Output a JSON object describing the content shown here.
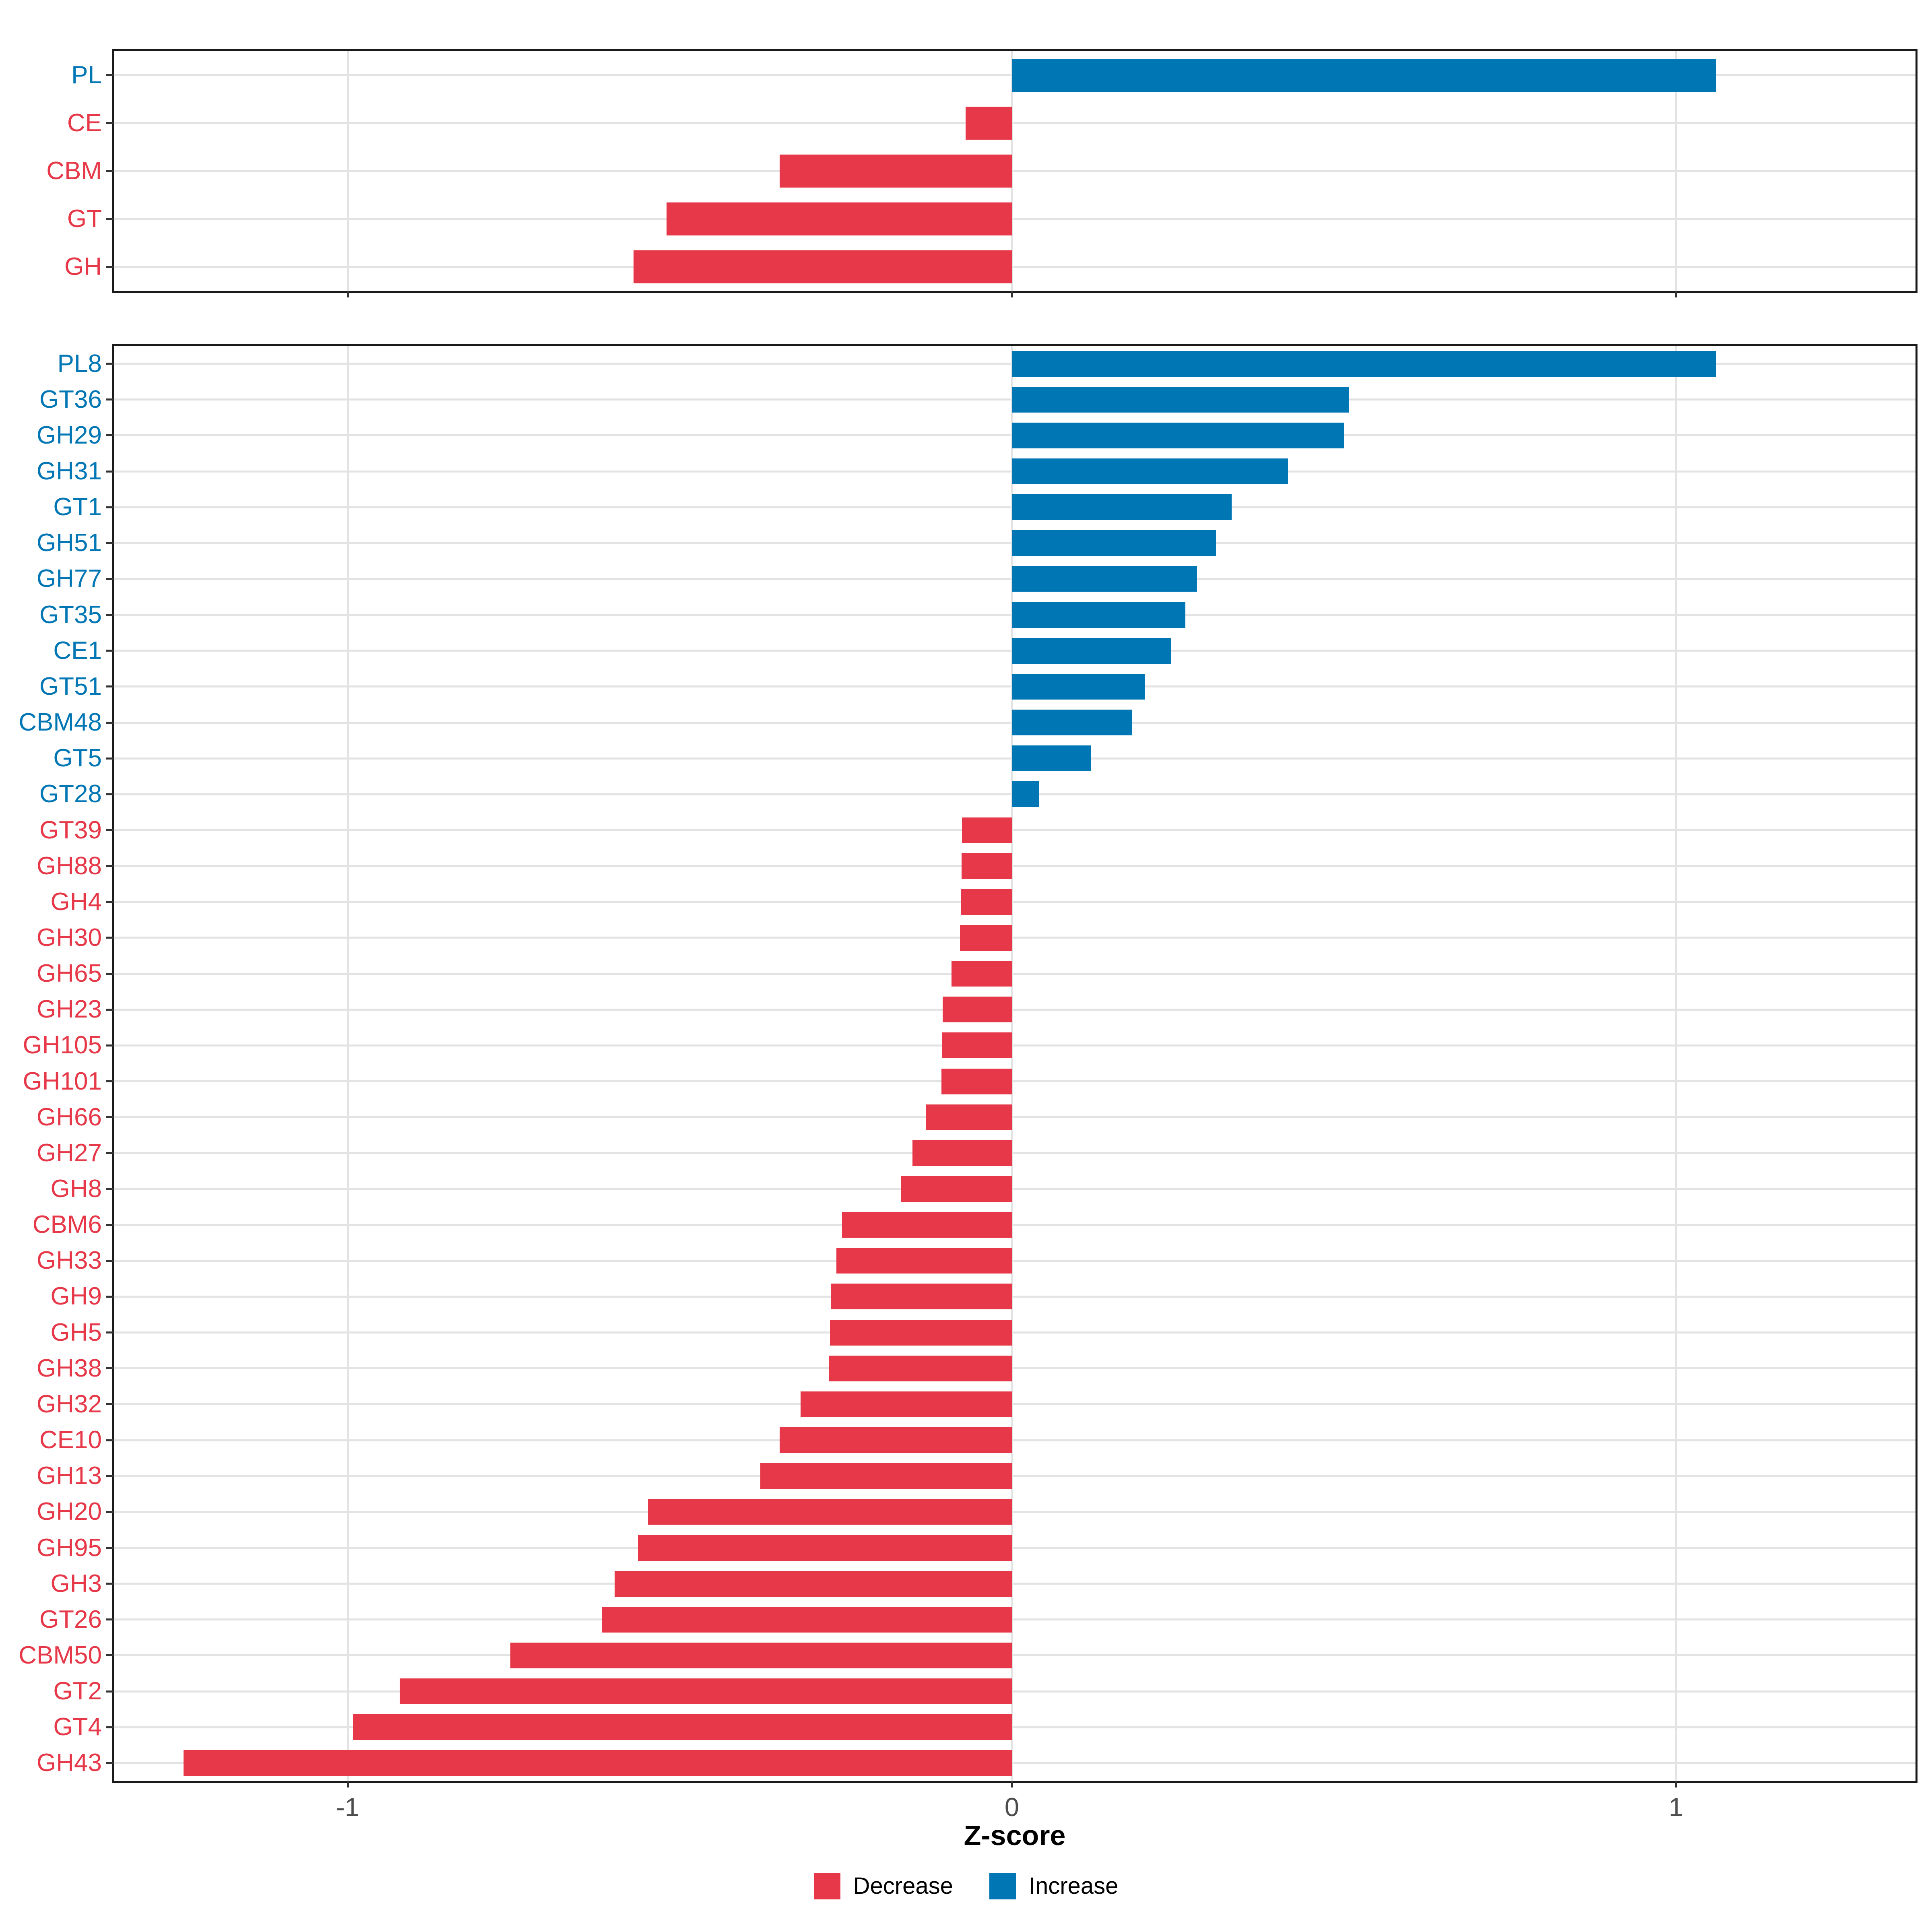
{
  "chart_data": {
    "type": "bar",
    "orientation": "horizontal",
    "title": "",
    "xlabel": "Z-score",
    "ylabel": "",
    "grid": true,
    "x_axis": {
      "ticks": [
        -1,
        0,
        1
      ],
      "tick_labels": [
        "-1",
        "0",
        "1"
      ],
      "range": [
        -1.355,
        1.363
      ]
    },
    "colors": {
      "decrease": "#E63848",
      "increase": "#0076B4"
    },
    "legend": {
      "position": "bottom",
      "items": [
        {
          "key": "decrease",
          "label": "Decrease"
        },
        {
          "key": "increase",
          "label": "Increase"
        }
      ]
    },
    "panels": [
      {
        "name": "cazyme-class-summary",
        "rows": [
          {
            "label": "PL",
            "value": 1.06,
            "direction": "increase"
          },
          {
            "label": "CE",
            "value": -0.07,
            "direction": "decrease"
          },
          {
            "label": "CBM",
            "value": -0.35,
            "direction": "decrease"
          },
          {
            "label": "GT",
            "value": -0.52,
            "direction": "decrease"
          },
          {
            "label": "GH",
            "value": -0.57,
            "direction": "decrease"
          }
        ]
      },
      {
        "name": "cazyme-family-detail",
        "rows": [
          {
            "label": "PL8",
            "value": 1.06,
            "direction": "increase"
          },
          {
            "label": "GT36",
            "value": 0.507,
            "direction": "increase"
          },
          {
            "label": "GH29",
            "value": 0.5,
            "direction": "increase"
          },
          {
            "label": "GH31",
            "value": 0.416,
            "direction": "increase"
          },
          {
            "label": "GT1",
            "value": 0.331,
            "direction": "increase"
          },
          {
            "label": "GH51",
            "value": 0.307,
            "direction": "increase"
          },
          {
            "label": "GH77",
            "value": 0.279,
            "direction": "increase"
          },
          {
            "label": "GT35",
            "value": 0.261,
            "direction": "increase"
          },
          {
            "label": "CE1",
            "value": 0.24,
            "direction": "increase"
          },
          {
            "label": "GT51",
            "value": 0.2,
            "direction": "increase"
          },
          {
            "label": "CBM48",
            "value": 0.181,
            "direction": "increase"
          },
          {
            "label": "GT5",
            "value": 0.119,
            "direction": "increase"
          },
          {
            "label": "GT28",
            "value": 0.041,
            "direction": "increase"
          },
          {
            "label": "GT39",
            "value": -0.075,
            "direction": "decrease"
          },
          {
            "label": "GH88",
            "value": -0.076,
            "direction": "decrease"
          },
          {
            "label": "GH4",
            "value": -0.077,
            "direction": "decrease"
          },
          {
            "label": "GH30",
            "value": -0.078,
            "direction": "decrease"
          },
          {
            "label": "GH65",
            "value": -0.091,
            "direction": "decrease"
          },
          {
            "label": "GH23",
            "value": -0.104,
            "direction": "decrease"
          },
          {
            "label": "GH105",
            "value": -0.105,
            "direction": "decrease"
          },
          {
            "label": "GH101",
            "value": -0.106,
            "direction": "decrease"
          },
          {
            "label": "GH66",
            "value": -0.13,
            "direction": "decrease"
          },
          {
            "label": "GH27",
            "value": -0.15,
            "direction": "decrease"
          },
          {
            "label": "GH8",
            "value": -0.167,
            "direction": "decrease"
          },
          {
            "label": "CBM6",
            "value": -0.256,
            "direction": "decrease"
          },
          {
            "label": "GH33",
            "value": -0.264,
            "direction": "decrease"
          },
          {
            "label": "GH9",
            "value": -0.272,
            "direction": "decrease"
          },
          {
            "label": "GH5",
            "value": -0.274,
            "direction": "decrease"
          },
          {
            "label": "GH38",
            "value": -0.276,
            "direction": "decrease"
          },
          {
            "label": "GH32",
            "value": -0.318,
            "direction": "decrease"
          },
          {
            "label": "CE10",
            "value": -0.35,
            "direction": "decrease"
          },
          {
            "label": "GH13",
            "value": -0.379,
            "direction": "decrease"
          },
          {
            "label": "GH20",
            "value": -0.548,
            "direction": "decrease"
          },
          {
            "label": "GH95",
            "value": -0.563,
            "direction": "decrease"
          },
          {
            "label": "GH3",
            "value": -0.598,
            "direction": "decrease"
          },
          {
            "label": "GT26",
            "value": -0.617,
            "direction": "decrease"
          },
          {
            "label": "CBM50",
            "value": -0.755,
            "direction": "decrease"
          },
          {
            "label": "GT2",
            "value": -0.922,
            "direction": "decrease"
          },
          {
            "label": "GT4",
            "value": -0.992,
            "direction": "decrease"
          },
          {
            "label": "GH43",
            "value": -1.247,
            "direction": "decrease"
          }
        ]
      }
    ]
  }
}
